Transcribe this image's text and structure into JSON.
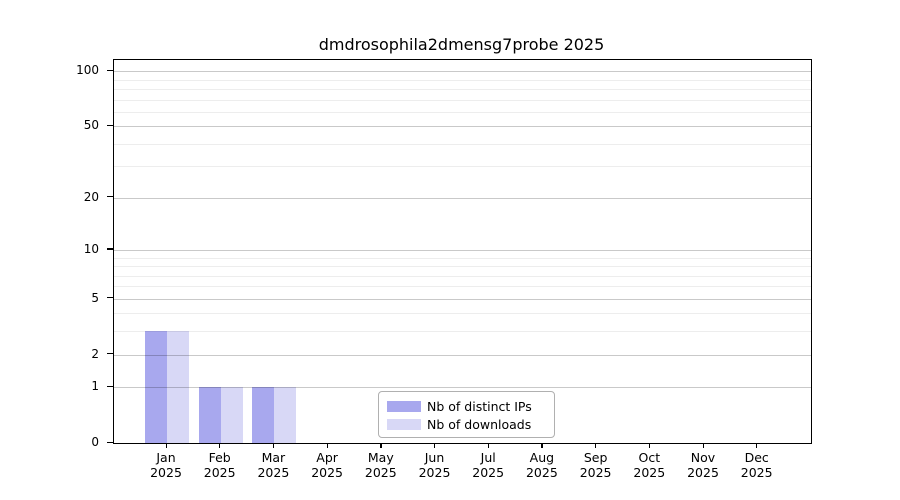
{
  "chart_data": {
    "type": "bar",
    "title": "dmdrosophila2dmensg7probe 2025",
    "year": "2025",
    "categories": [
      "Jan",
      "Feb",
      "Mar",
      "Apr",
      "May",
      "Jun",
      "Jul",
      "Aug",
      "Sep",
      "Oct",
      "Nov",
      "Dec"
    ],
    "x_tick_labels": [
      "Jan 2025",
      "Feb 2025",
      "Mar 2025",
      "Apr 2025",
      "May 2025",
      "Jun 2025",
      "Jul 2025",
      "Aug 2025",
      "Sep 2025",
      "Oct 2025",
      "Nov 2025",
      "Dec 2025"
    ],
    "series": [
      {
        "name": "Nb of distinct IPs",
        "color": "#a8a8ee",
        "values": [
          3,
          1,
          1,
          0,
          0,
          0,
          0,
          0,
          0,
          0,
          0,
          0
        ]
      },
      {
        "name": "Nb of downloads",
        "color": "#d8d8f6",
        "values": [
          3,
          1,
          1,
          0,
          0,
          0,
          0,
          0,
          0,
          0,
          0,
          0
        ]
      }
    ],
    "y_scale": "log1p",
    "ylim": [
      0,
      115
    ],
    "y_major_ticks": [
      0,
      1,
      2,
      5,
      10,
      20,
      50,
      100
    ],
    "y_minor_gridlines": [
      3,
      4,
      6,
      7,
      8,
      9,
      30,
      40,
      60,
      70,
      80,
      90
    ],
    "grid": true,
    "legend_position": "bottom-center",
    "colors": {
      "major_grid": "#c9c9c9",
      "minor_grid": "#ececec",
      "axis": "#000000",
      "background": "#ffffff"
    }
  }
}
